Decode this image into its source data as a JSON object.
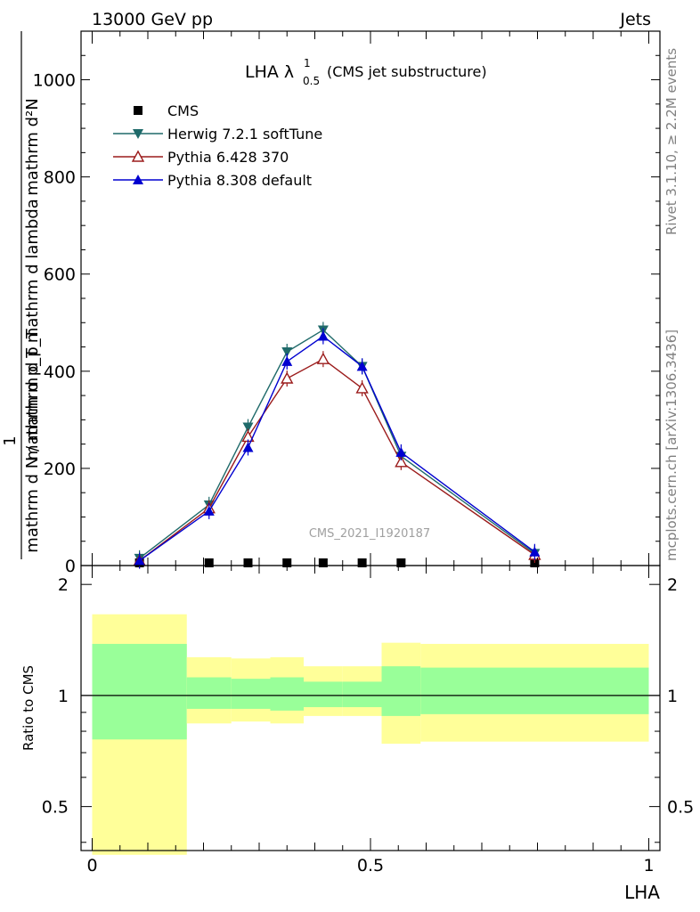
{
  "header": {
    "left": "13000 GeV pp",
    "right": "Jets"
  },
  "side_text": {
    "rivet": "Rivet 3.1.10, ≥ 2.2M events",
    "mcplots": "mcplots.cern.ch [arXiv:1306.3436]"
  },
  "chart_data": [
    {
      "type": "line",
      "title": {
        "main": "LHA λ",
        "sup": "1",
        "sub": "0.5",
        "rest": "(CMS jet substructure)"
      },
      "watermark": "CMS_2021_I1920187",
      "xlabel": "LHA",
      "ylabel": {
        "line1": "mathrm d²N",
        "line2": "mathrm d p_T mathrm d lambda",
        "prefix": "1",
        "line3": "mathrm d N / mathrm d p_T"
      },
      "xlim": [
        -0.02,
        1.02
      ],
      "ylim": [
        0,
        1100
      ],
      "x_ticks": [
        "0",
        "0.5",
        "1"
      ],
      "x_tick_values": [
        0,
        0.5,
        1
      ],
      "y_ticks": [
        "0",
        "200",
        "400",
        "600",
        "800",
        "1000"
      ],
      "y_tick_values": [
        0,
        200,
        400,
        600,
        800,
        1000
      ],
      "legend_position": "top-left",
      "series": [
        {
          "name": "CMS",
          "color": "#000000",
          "marker": "square",
          "x": [
            0.085,
            0.21,
            0.28,
            0.35,
            0.415,
            0.485,
            0.555,
            0.795
          ],
          "y": [
            0,
            0,
            0,
            0,
            0,
            0,
            0,
            0
          ]
        },
        {
          "name": "Herwig 7.2.1 softTune",
          "color": "#1f6a6a",
          "marker": "triangle-down",
          "x": [
            0.085,
            0.21,
            0.28,
            0.35,
            0.415,
            0.485,
            0.555,
            0.795
          ],
          "y": [
            15,
            125,
            285,
            440,
            485,
            410,
            225,
            25
          ]
        },
        {
          "name": "Pythia 6.428 370",
          "color": "#9b1b1b",
          "marker": "triangle-up-open",
          "x": [
            0.085,
            0.21,
            0.28,
            0.35,
            0.415,
            0.485,
            0.555,
            0.795
          ],
          "y": [
            10,
            118,
            265,
            385,
            425,
            365,
            213,
            22
          ]
        },
        {
          "name": "Pythia 8.308 default",
          "color": "#0000d0",
          "marker": "triangle-up",
          "x": [
            0.085,
            0.21,
            0.28,
            0.35,
            0.415,
            0.485,
            0.555,
            0.795
          ],
          "y": [
            10,
            112,
            243,
            420,
            472,
            410,
            233,
            28
          ]
        }
      ]
    },
    {
      "type": "area",
      "xlabel": "LHA",
      "ylabel": "Ratio to CMS",
      "xlim": [
        -0.02,
        1.02
      ],
      "ylim": [
        0.38,
        2.25
      ],
      "y_ticks": [
        "0.5",
        "1",
        "2"
      ],
      "y_tick_values": [
        0.5,
        1,
        2
      ],
      "reference_line": 1,
      "bins": [
        {
          "x0": 0.0,
          "x1": 0.17,
          "inner": [
            0.76,
            1.38
          ],
          "outer": [
            0.37,
            1.66
          ]
        },
        {
          "x0": 0.17,
          "x1": 0.25,
          "inner": [
            0.92,
            1.12
          ],
          "outer": [
            0.84,
            1.27
          ]
        },
        {
          "x0": 0.25,
          "x1": 0.32,
          "inner": [
            0.92,
            1.11
          ],
          "outer": [
            0.85,
            1.26
          ]
        },
        {
          "x0": 0.32,
          "x1": 0.38,
          "inner": [
            0.91,
            1.12
          ],
          "outer": [
            0.84,
            1.27
          ]
        },
        {
          "x0": 0.38,
          "x1": 0.45,
          "inner": [
            0.93,
            1.09
          ],
          "outer": [
            0.88,
            1.2
          ]
        },
        {
          "x0": 0.45,
          "x1": 0.52,
          "inner": [
            0.93,
            1.09
          ],
          "outer": [
            0.88,
            1.2
          ]
        },
        {
          "x0": 0.52,
          "x1": 0.59,
          "inner": [
            0.88,
            1.2
          ],
          "outer": [
            0.74,
            1.39
          ]
        },
        {
          "x0": 0.59,
          "x1": 1.0,
          "inner": [
            0.89,
            1.19
          ],
          "outer": [
            0.75,
            1.38
          ]
        }
      ],
      "colors": {
        "inner": "#99ff99",
        "outer": "#ffff99"
      }
    }
  ]
}
